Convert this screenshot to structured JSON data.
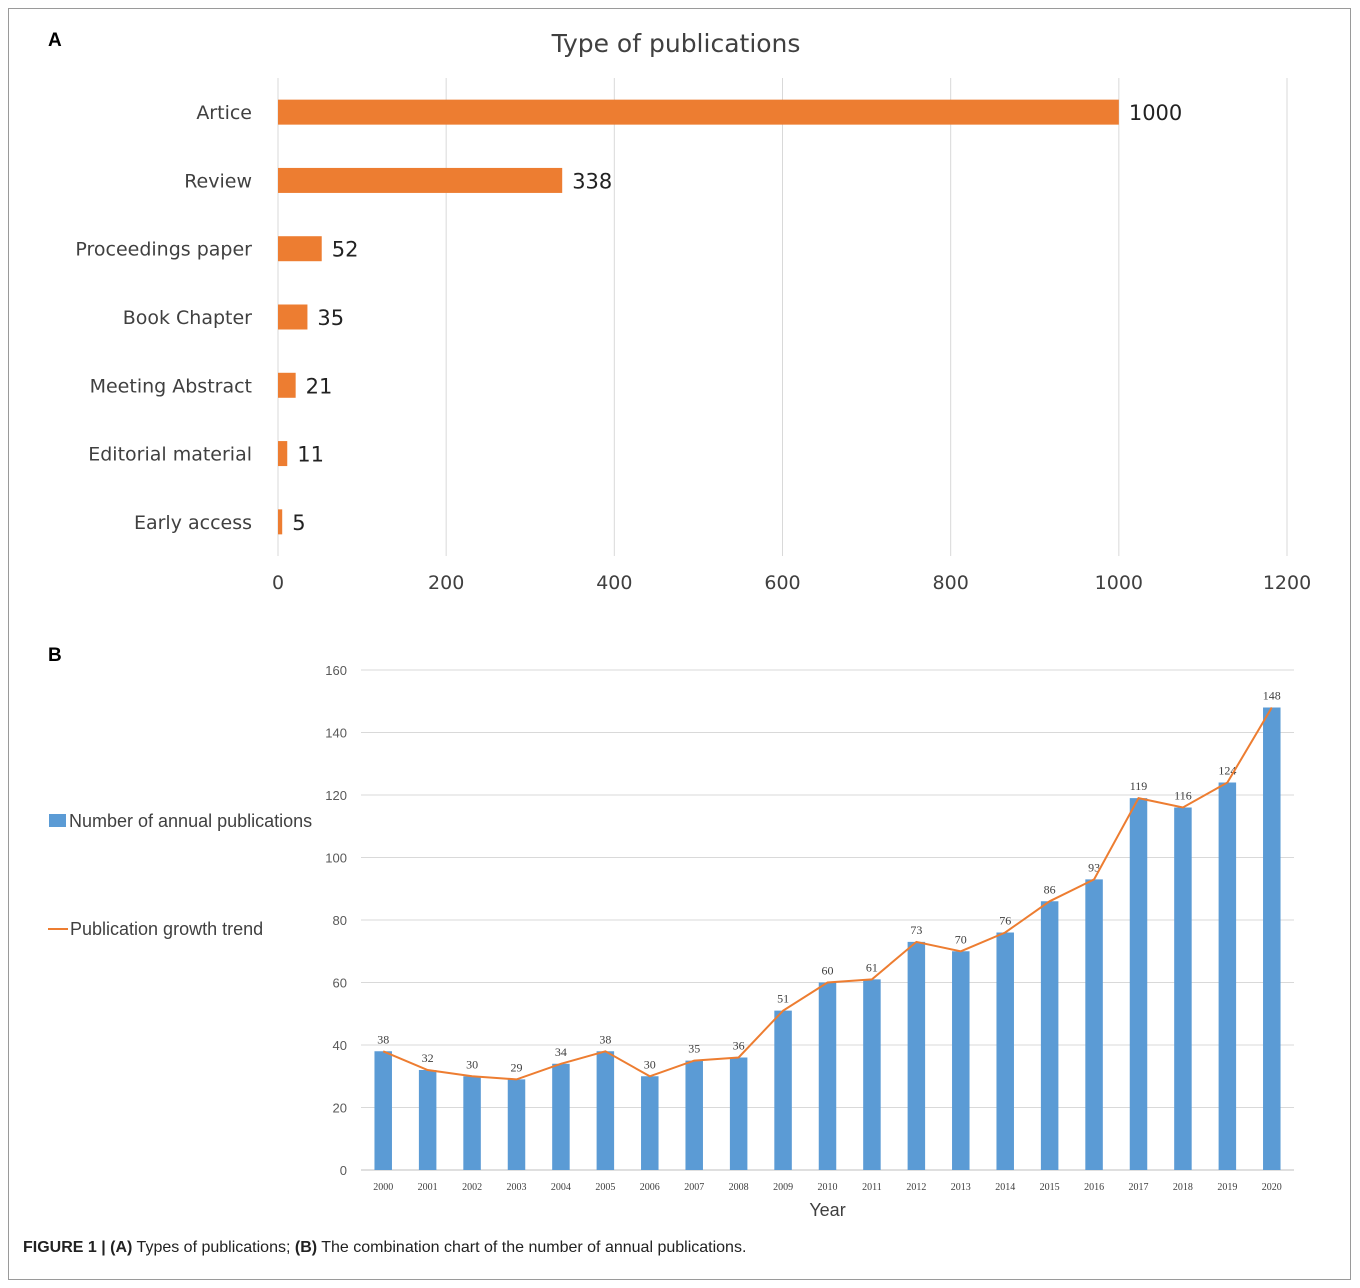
{
  "panel_a_letter": "A",
  "panel_b_letter": "B",
  "caption": {
    "figure": "FIGURE 1 |",
    "a_label": "(A)",
    "a_text": " Types of publications; ",
    "b_label": "(B)",
    "b_text": " The combination chart of the number of annual publications."
  },
  "chart_data": [
    {
      "type": "bar",
      "orientation": "horizontal",
      "title": "Type of publications",
      "categories": [
        "Artice",
        "Review",
        "Proceedings paper",
        "Book Chapter",
        "Meeting Abstract",
        "Editorial material",
        "Early access"
      ],
      "values": [
        1000,
        338,
        52,
        35,
        21,
        11,
        5
      ],
      "xlim": [
        0,
        1200
      ],
      "xticks": [
        "0",
        "200",
        "400",
        "600",
        "800",
        "1000",
        "1200"
      ],
      "grid": true,
      "color": "#ed7d31"
    },
    {
      "type": "bar",
      "title": "",
      "xlabel": "Year",
      "ylabel": "",
      "categories": [
        "2000",
        "2001",
        "2002",
        "2003",
        "2004",
        "2005",
        "2006",
        "2007",
        "2008",
        "2009",
        "2010",
        "2011",
        "2012",
        "2013",
        "2014",
        "2015",
        "2016",
        "2017",
        "2018",
        "2019",
        "2020"
      ],
      "series": [
        {
          "name": "Number of annual publications",
          "type": "bar",
          "color": "#5b9bd5",
          "values": [
            38,
            32,
            30,
            29,
            34,
            38,
            30,
            35,
            36,
            51,
            60,
            61,
            73,
            70,
            76,
            86,
            93,
            119,
            116,
            124,
            148
          ]
        },
        {
          "name": "Publication growth trend",
          "type": "line",
          "color": "#ed7d31",
          "values": [
            38,
            32,
            30,
            29,
            34,
            38,
            30,
            35,
            36,
            51,
            60,
            61,
            73,
            70,
            76,
            86,
            93,
            119,
            116,
            124,
            148
          ]
        }
      ],
      "ylim": [
        0,
        160
      ],
      "yticks": [
        "0",
        "20",
        "40",
        "60",
        "80",
        "100",
        "120",
        "140",
        "160"
      ],
      "grid": true,
      "legend": "left"
    }
  ]
}
